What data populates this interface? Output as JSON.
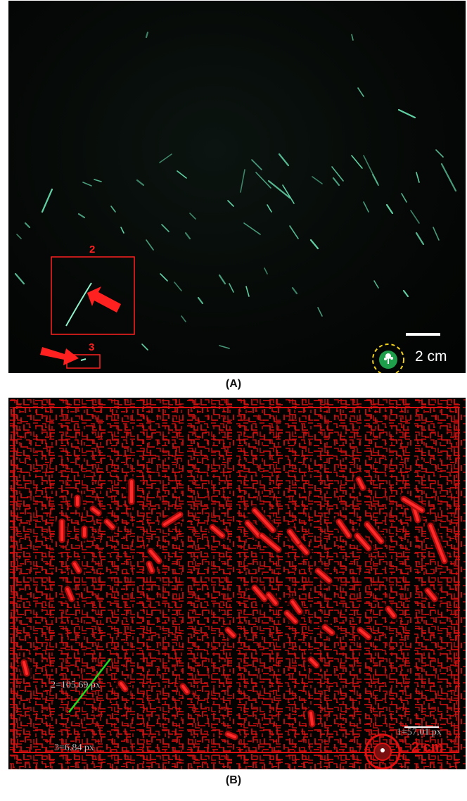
{
  "panel_a": {
    "caption": "(A)",
    "box2_label": "2",
    "box3_label": "3",
    "scale_label": "2 cm",
    "colors": {
      "fiber": "#6be3b4",
      "annotation": "#ff2020",
      "scale_ring": "#f2d21b",
      "marker": "#1e9e4a"
    }
  },
  "panel_b": {
    "caption": "(B)",
    "measure_2": "2=105.69 px",
    "measure_3": "3=6.84 px",
    "measure_1": "1=57.01 px",
    "scale_label": "2 cm",
    "colors": {
      "edges": "#e01010",
      "measure_line": "#22dd22",
      "label": "#f4f4f4"
    }
  }
}
